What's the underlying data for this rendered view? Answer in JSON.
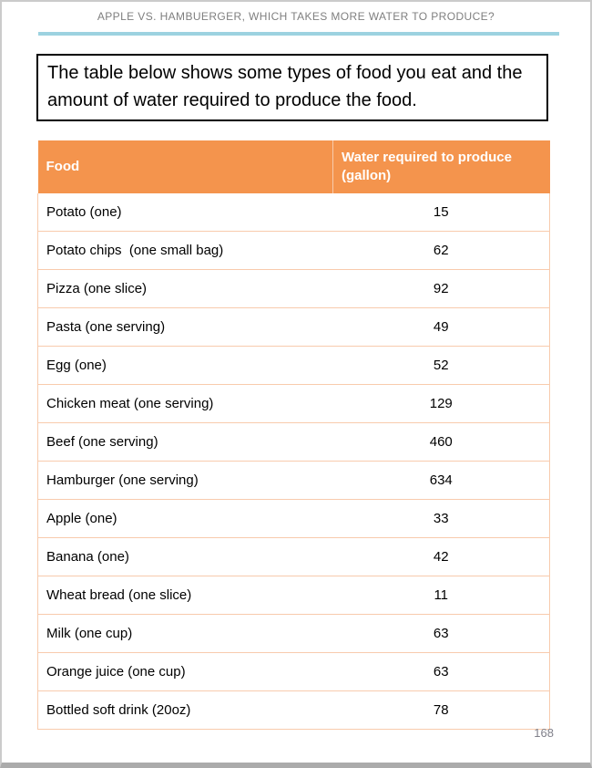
{
  "page": {
    "header_title": "APPLE VS. HAMBUERGER, WHICH TAKES MORE WATER TO PRODUCE?",
    "page_number": "168"
  },
  "intro": {
    "text": "The table below shows some types of food you eat and the amount of water required to produce the food."
  },
  "table": {
    "columns": [
      "Food",
      "Water required to produce (gallon)"
    ],
    "rows": [
      {
        "food": "Potato (one)",
        "gallons": "15"
      },
      {
        "food": "Potato chips  (one small bag)",
        "gallons": "62"
      },
      {
        "food": "Pizza (one slice)",
        "gallons": "92"
      },
      {
        "food": "Pasta (one serving)",
        "gallons": "49"
      },
      {
        "food": "Egg (one)",
        "gallons": "52"
      },
      {
        "food": "Chicken meat (one serving)",
        "gallons": "129"
      },
      {
        "food": "Beef (one serving)",
        "gallons": "460"
      },
      {
        "food": "Hamburger (one serving)",
        "gallons": "634"
      },
      {
        "food": "Apple (one)",
        "gallons": "33"
      },
      {
        "food": "Banana (one)",
        "gallons": "42"
      },
      {
        "food": "Wheat bread (one slice)",
        "gallons": "11"
      },
      {
        "food": "Milk (one cup)",
        "gallons": "63"
      },
      {
        "food": "Orange juice (one cup)",
        "gallons": "63"
      },
      {
        "food": "Bottled soft drink (20oz)",
        "gallons": "78"
      }
    ]
  },
  "colors": {
    "table_header_fill": "#f4944d",
    "table_border": "#f8cbad",
    "accent_line": "#9cd2e0",
    "header_text": "#7f7f7f"
  }
}
